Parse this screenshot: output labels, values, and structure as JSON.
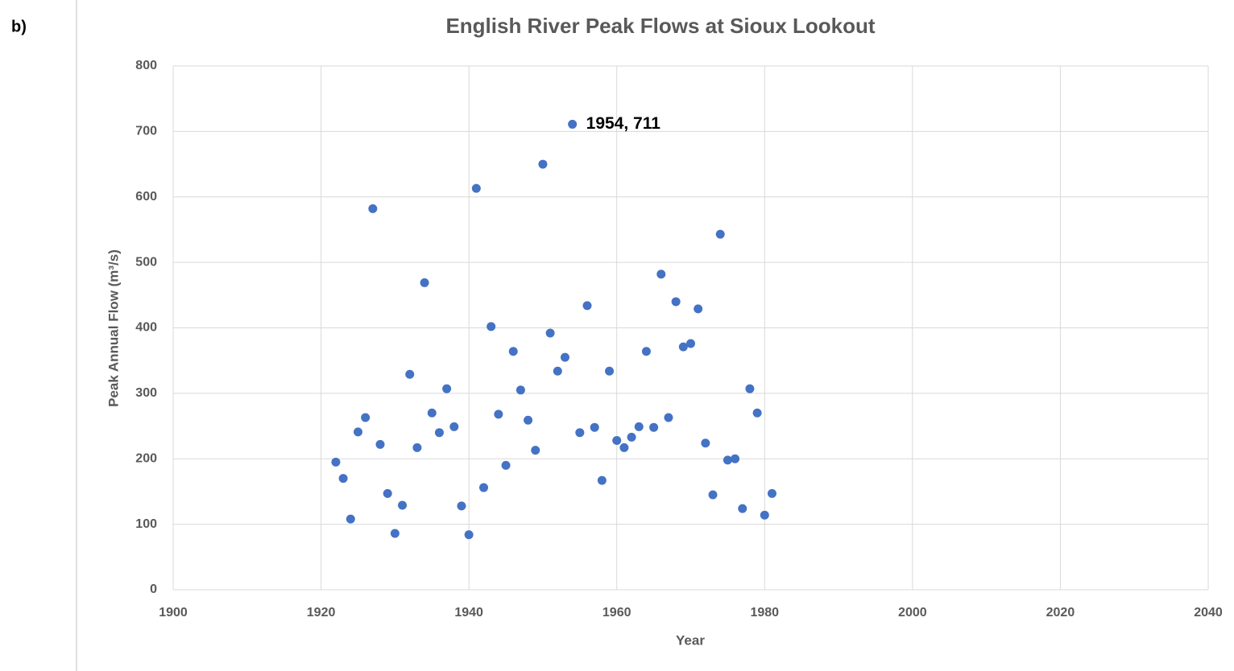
{
  "panel_label": "b)",
  "chart_data": {
    "type": "scatter",
    "title": "English River Peak Flows at Sioux Lookout",
    "xlabel": "Year",
    "ylabel": "Peak Annual Flow (m³/s)",
    "x": [
      1922,
      1923,
      1924,
      1925,
      1926,
      1927,
      1928,
      1929,
      1930,
      1931,
      1932,
      1933,
      1934,
      1935,
      1936,
      1937,
      1938,
      1939,
      1940,
      1941,
      1942,
      1943,
      1944,
      1945,
      1946,
      1947,
      1948,
      1949,
      1950,
      1951,
      1952,
      1953,
      1954,
      1955,
      1956,
      1957,
      1958,
      1959,
      1960,
      1961,
      1962,
      1963,
      1964,
      1965,
      1966,
      1967,
      1968,
      1969,
      1970,
      1971,
      1972,
      1973,
      1974,
      1975,
      1976,
      1977,
      1978,
      1979,
      1980,
      1981
    ],
    "values": [
      195,
      170,
      108,
      241,
      263,
      582,
      222,
      147,
      86,
      129,
      329,
      217,
      469,
      270,
      240,
      307,
      249,
      128,
      84,
      613,
      156,
      402,
      268,
      190,
      364,
      305,
      259,
      213,
      650,
      392,
      334,
      355,
      711,
      240,
      434,
      248,
      167,
      334,
      228,
      217,
      233,
      249,
      364,
      248,
      482,
      263,
      440,
      371,
      376,
      429,
      224,
      145,
      543,
      198,
      200,
      124,
      307,
      270,
      114,
      147
    ],
    "value_labels": [
      null,
      null,
      null,
      null,
      null,
      null,
      null,
      null,
      null,
      null,
      null,
      null,
      null,
      null,
      null,
      null,
      null,
      null,
      null,
      null,
      null,
      null,
      null,
      null,
      null,
      null,
      null,
      null,
      null,
      null,
      null,
      null,
      "1954, 711",
      null,
      null,
      null,
      null,
      null,
      null,
      null,
      null,
      null,
      null,
      null,
      null,
      null,
      null,
      null,
      null,
      null,
      null,
      null,
      null,
      null,
      null,
      null,
      null,
      null,
      null,
      null
    ],
    "color": "#4472c4",
    "xlim": [
      1900,
      2040
    ],
    "xticks": [
      1900,
      1920,
      1940,
      1960,
      1980,
      2000,
      2020,
      2040
    ],
    "ylim": [
      0,
      800
    ],
    "yticks": [
      0,
      100,
      200,
      300,
      400,
      500,
      600,
      700,
      800
    ],
    "grid": true
  }
}
